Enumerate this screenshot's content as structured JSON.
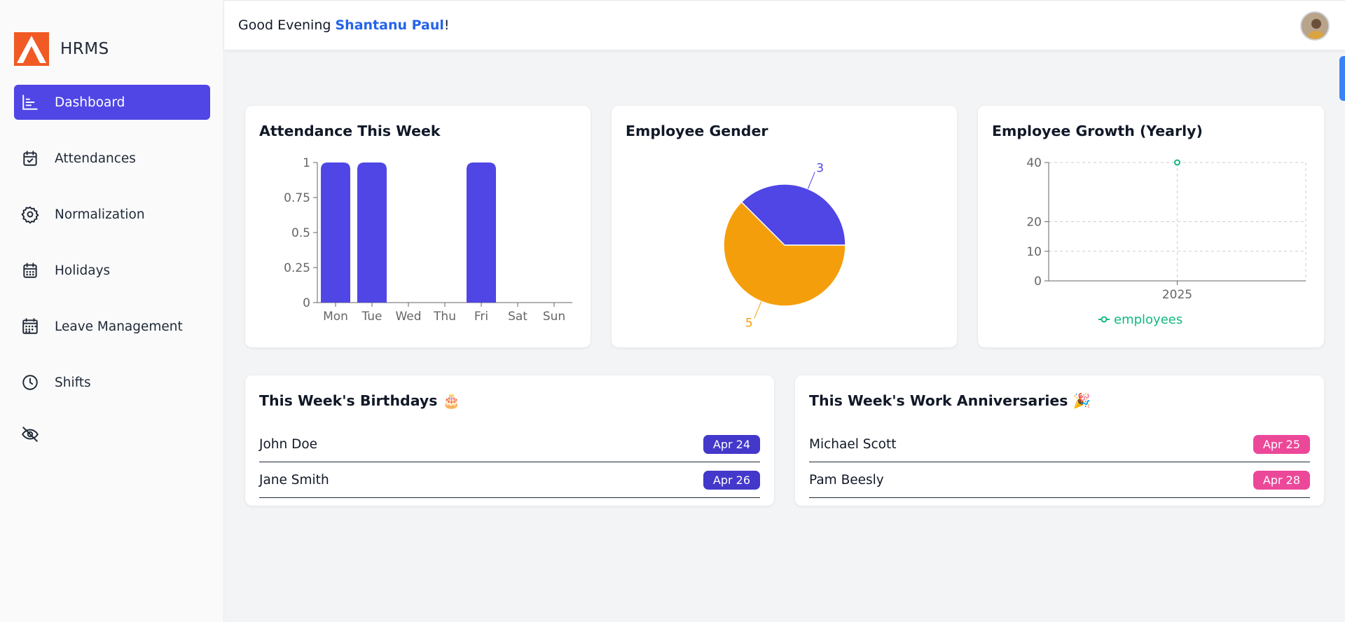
{
  "app": {
    "name": "HRMS"
  },
  "sidebar": {
    "items": [
      {
        "label": "Dashboard",
        "icon": "bar-chart-icon"
      },
      {
        "label": "Attendances",
        "icon": "calendar-check-icon"
      },
      {
        "label": "Normalization",
        "icon": "gear-icon"
      },
      {
        "label": "Holidays",
        "icon": "calendar-icon"
      },
      {
        "label": "Leave Management",
        "icon": "calendar-grid-icon"
      },
      {
        "label": "Shifts",
        "icon": "clock-icon"
      }
    ],
    "toggle_icon": "eye-off-icon"
  },
  "header": {
    "greeting_prefix": "Good Evening ",
    "user_name": "Shantanu Paul",
    "greeting_suffix": "!"
  },
  "cards": {
    "attendance": {
      "title": "Attendance This Week"
    },
    "gender": {
      "title": "Employee Gender"
    },
    "growth": {
      "title": "Employee Growth (Yearly)"
    },
    "birthdays": {
      "title": "This Week's Birthdays 🎂",
      "items": [
        {
          "name": "John Doe",
          "date": "Apr 24"
        },
        {
          "name": "Jane Smith",
          "date": "Apr 26"
        }
      ]
    },
    "anniversaries": {
      "title": "This Week's Work Anniversaries 🎉",
      "items": [
        {
          "name": "Michael Scott",
          "date": "Apr 25"
        },
        {
          "name": "Pam Beesly",
          "date": "Apr 28"
        }
      ]
    }
  },
  "colors": {
    "primary": "#4f46e5",
    "pie_secondary": "#f59e0b",
    "growth_line": "#10b981",
    "link": "#2563eb",
    "badge_blue": "#4338ca",
    "badge_pink": "#ec4899"
  },
  "chart_data": [
    {
      "type": "bar",
      "categories": [
        "Mon",
        "Tue",
        "Wed",
        "Thu",
        "Fri",
        "Sat",
        "Sun"
      ],
      "values": [
        1,
        1,
        0,
        0,
        1,
        0,
        0
      ],
      "yticks": [
        "0",
        "0.25",
        "0.5",
        "0.75",
        "1"
      ],
      "ylim": [
        0,
        1
      ],
      "grid": false
    },
    {
      "type": "pie",
      "labels": [
        "3",
        "5"
      ],
      "values": [
        3,
        5
      ],
      "colors": [
        "#4f46e5",
        "#f59e0b"
      ]
    },
    {
      "type": "line",
      "x": [
        "2025"
      ],
      "series": [
        {
          "name": "employees",
          "values": [
            40
          ]
        }
      ],
      "yticks": [
        "0",
        "10",
        "20",
        "40"
      ],
      "ylim": [
        0,
        40
      ],
      "grid": true,
      "legend": "bottom"
    }
  ]
}
